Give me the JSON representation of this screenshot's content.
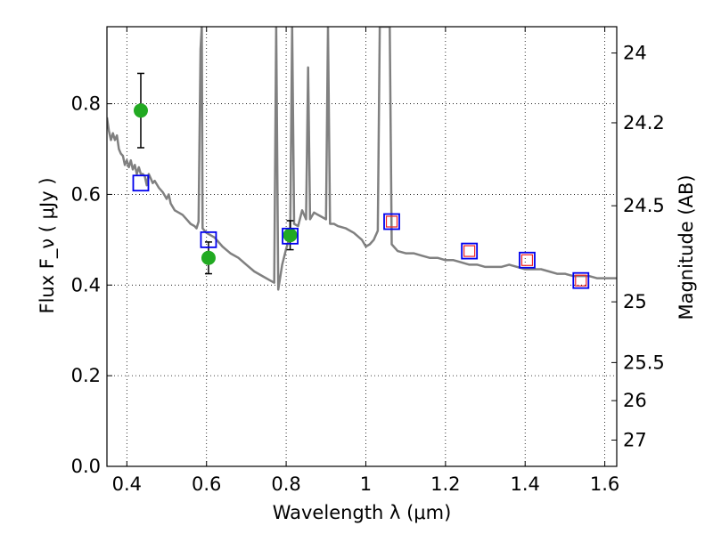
{
  "chart_data": {
    "type": "scatter",
    "xlabel": "Wavelength  λ (μm)",
    "ylabel": "Flux  F_ν  ( μJy )",
    "ylabel_right": "Magnitude (AB)",
    "xlim": [
      0.35,
      1.63
    ],
    "ylim": [
      0.0,
      0.97
    ],
    "x_ticks": [
      0.4,
      0.6,
      0.8,
      1.0,
      1.2,
      1.4,
      1.6
    ],
    "x_tick_labels": [
      "0.4",
      "0.6",
      "0.8",
      "1",
      "1.2",
      "1.4",
      "1.6"
    ],
    "y_ticks": [
      0.0,
      0.2,
      0.4,
      0.6,
      0.8
    ],
    "y_tick_labels": [
      "0.0",
      "0.2",
      "0.4",
      "0.6",
      "0.8"
    ],
    "right_ticks": [
      {
        "label": "24",
        "flux": 0.912
      },
      {
        "label": "24.2",
        "flux": 0.758
      },
      {
        "label": "24.5",
        "flux": 0.575
      },
      {
        "label": "25",
        "flux": 0.363
      },
      {
        "label": "25.5",
        "flux": 0.229
      },
      {
        "label": "26",
        "flux": 0.145
      },
      {
        "label": "27",
        "flux": 0.058
      }
    ],
    "grid": true,
    "series": [
      {
        "kind": "line",
        "color": "#808080",
        "points": [
          [
            0.35,
            0.77
          ],
          [
            0.355,
            0.74
          ],
          [
            0.36,
            0.72
          ],
          [
            0.365,
            0.735
          ],
          [
            0.37,
            0.72
          ],
          [
            0.375,
            0.73
          ],
          [
            0.38,
            0.7
          ],
          [
            0.385,
            0.69
          ],
          [
            0.39,
            0.685
          ],
          [
            0.395,
            0.665
          ],
          [
            0.4,
            0.675
          ],
          [
            0.405,
            0.66
          ],
          [
            0.41,
            0.675
          ],
          [
            0.415,
            0.655
          ],
          [
            0.42,
            0.665
          ],
          [
            0.425,
            0.645
          ],
          [
            0.43,
            0.66
          ],
          [
            0.435,
            0.645
          ],
          [
            0.44,
            0.645
          ],
          [
            0.445,
            0.64
          ],
          [
            0.45,
            0.62
          ],
          [
            0.455,
            0.645
          ],
          [
            0.46,
            0.635
          ],
          [
            0.465,
            0.625
          ],
          [
            0.47,
            0.63
          ],
          [
            0.48,
            0.615
          ],
          [
            0.49,
            0.605
          ],
          [
            0.5,
            0.59
          ],
          [
            0.505,
            0.6
          ],
          [
            0.51,
            0.58
          ],
          [
            0.52,
            0.565
          ],
          [
            0.53,
            0.56
          ],
          [
            0.54,
            0.555
          ],
          [
            0.55,
            0.545
          ],
          [
            0.56,
            0.535
          ],
          [
            0.57,
            0.53
          ],
          [
            0.575,
            0.525
          ],
          [
            0.58,
            0.54
          ],
          [
            0.585,
            0.92
          ],
          [
            0.588,
            0.97
          ],
          [
            0.59,
            0.525
          ],
          [
            0.6,
            0.515
          ],
          [
            0.62,
            0.505
          ],
          [
            0.64,
            0.485
          ],
          [
            0.66,
            0.47
          ],
          [
            0.68,
            0.46
          ],
          [
            0.7,
            0.445
          ],
          [
            0.72,
            0.43
          ],
          [
            0.74,
            0.42
          ],
          [
            0.76,
            0.41
          ],
          [
            0.77,
            0.405
          ],
          [
            0.775,
            0.97
          ],
          [
            0.78,
            0.39
          ],
          [
            0.79,
            0.445
          ],
          [
            0.8,
            0.48
          ],
          [
            0.81,
            0.51
          ],
          [
            0.815,
            0.97
          ],
          [
            0.82,
            0.535
          ],
          [
            0.83,
            0.53
          ],
          [
            0.84,
            0.565
          ],
          [
            0.85,
            0.545
          ],
          [
            0.855,
            0.88
          ],
          [
            0.86,
            0.545
          ],
          [
            0.87,
            0.56
          ],
          [
            0.88,
            0.555
          ],
          [
            0.89,
            0.55
          ],
          [
            0.9,
            0.545
          ],
          [
            0.905,
            0.97
          ],
          [
            0.91,
            0.535
          ],
          [
            0.92,
            0.535
          ],
          [
            0.93,
            0.53
          ],
          [
            0.95,
            0.525
          ],
          [
            0.97,
            0.515
          ],
          [
            0.99,
            0.5
          ],
          [
            1.0,
            0.485
          ],
          [
            1.01,
            0.49
          ],
          [
            1.02,
            0.5
          ],
          [
            1.03,
            0.52
          ],
          [
            1.035,
            0.97
          ],
          [
            1.06,
            0.97
          ],
          [
            1.065,
            0.49
          ],
          [
            1.08,
            0.475
          ],
          [
            1.1,
            0.47
          ],
          [
            1.12,
            0.47
          ],
          [
            1.14,
            0.465
          ],
          [
            1.16,
            0.46
          ],
          [
            1.18,
            0.46
          ],
          [
            1.2,
            0.455
          ],
          [
            1.22,
            0.455
          ],
          [
            1.24,
            0.45
          ],
          [
            1.26,
            0.445
          ],
          [
            1.28,
            0.445
          ],
          [
            1.3,
            0.44
          ],
          [
            1.32,
            0.44
          ],
          [
            1.34,
            0.44
          ],
          [
            1.36,
            0.445
          ],
          [
            1.38,
            0.44
          ],
          [
            1.4,
            0.435
          ],
          [
            1.42,
            0.435
          ],
          [
            1.44,
            0.435
          ],
          [
            1.46,
            0.43
          ],
          [
            1.48,
            0.425
          ],
          [
            1.5,
            0.425
          ],
          [
            1.52,
            0.42
          ],
          [
            1.54,
            0.42
          ],
          [
            1.56,
            0.42
          ],
          [
            1.58,
            0.415
          ],
          [
            1.6,
            0.415
          ],
          [
            1.62,
            0.415
          ],
          [
            1.63,
            0.415
          ]
        ]
      },
      {
        "kind": "points",
        "marker": "circle",
        "color": "#22aa22",
        "errorbars": true,
        "points": [
          {
            "x": 0.435,
            "y": 0.785,
            "err": 0.082
          },
          {
            "x": 0.605,
            "y": 0.46,
            "err": 0.035
          },
          {
            "x": 0.81,
            "y": 0.51,
            "err": 0.032
          }
        ]
      },
      {
        "kind": "points",
        "marker": "open-square",
        "color": "#0000ee",
        "points": [
          {
            "x": 0.435,
            "y": 0.625
          },
          {
            "x": 0.605,
            "y": 0.5
          },
          {
            "x": 0.81,
            "y": 0.508
          },
          {
            "x": 1.065,
            "y": 0.54
          },
          {
            "x": 1.26,
            "y": 0.475
          },
          {
            "x": 1.405,
            "y": 0.455
          },
          {
            "x": 1.54,
            "y": 0.41
          }
        ]
      },
      {
        "kind": "points",
        "marker": "open-square-small",
        "color": "#ee2222",
        "points": [
          {
            "x": 1.065,
            "y": 0.54
          },
          {
            "x": 1.26,
            "y": 0.475
          },
          {
            "x": 1.405,
            "y": 0.455
          },
          {
            "x": 1.54,
            "y": 0.41
          }
        ]
      }
    ]
  }
}
